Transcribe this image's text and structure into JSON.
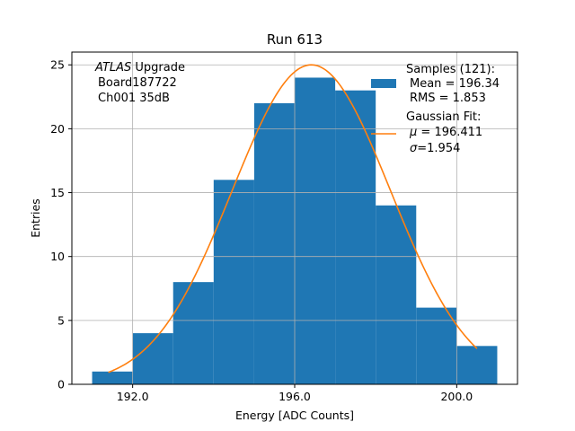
{
  "chart_data": {
    "type": "bar",
    "title": "Run 613",
    "xlabel": "Energy [ADC Counts]",
    "ylabel": "Entries",
    "xlim": [
      190.5,
      201.5
    ],
    "ylim": [
      0,
      26
    ],
    "grid": true,
    "x_ticks": [
      192.0,
      196.0,
      200.0
    ],
    "x_tick_labels": [
      "192.0",
      "196.0",
      "200.0"
    ],
    "y_ticks": [
      0,
      5,
      10,
      15,
      20,
      25
    ],
    "y_tick_labels": [
      "0",
      "5",
      "10",
      "15",
      "20",
      "25"
    ],
    "bin_edges": [
      191,
      192,
      193,
      194,
      195,
      196,
      197,
      198,
      199,
      200,
      201
    ],
    "values": [
      1,
      4,
      8,
      16,
      22,
      24,
      23,
      14,
      6,
      3
    ],
    "bar_color": "#1f77b4",
    "fit": {
      "mu": 196.411,
      "sigma": 1.954,
      "amplitude": 25.0,
      "x_range": [
        191.4,
        200.5
      ],
      "color": "#ff7f0e"
    },
    "annotation": {
      "italic": "ATLAS",
      "rest": " Upgrade",
      "line2": "Board187722",
      "line3": "Ch001 35dB"
    },
    "legend": {
      "position": "top-right",
      "hist_lines": [
        "Samples (121):",
        "Mean = 196.34",
        "RMS = 1.853"
      ],
      "fit_line1": "Gaussian Fit:",
      "fit_mu_value": " = 196.411",
      "fit_sigma_value": "=1.954"
    }
  }
}
